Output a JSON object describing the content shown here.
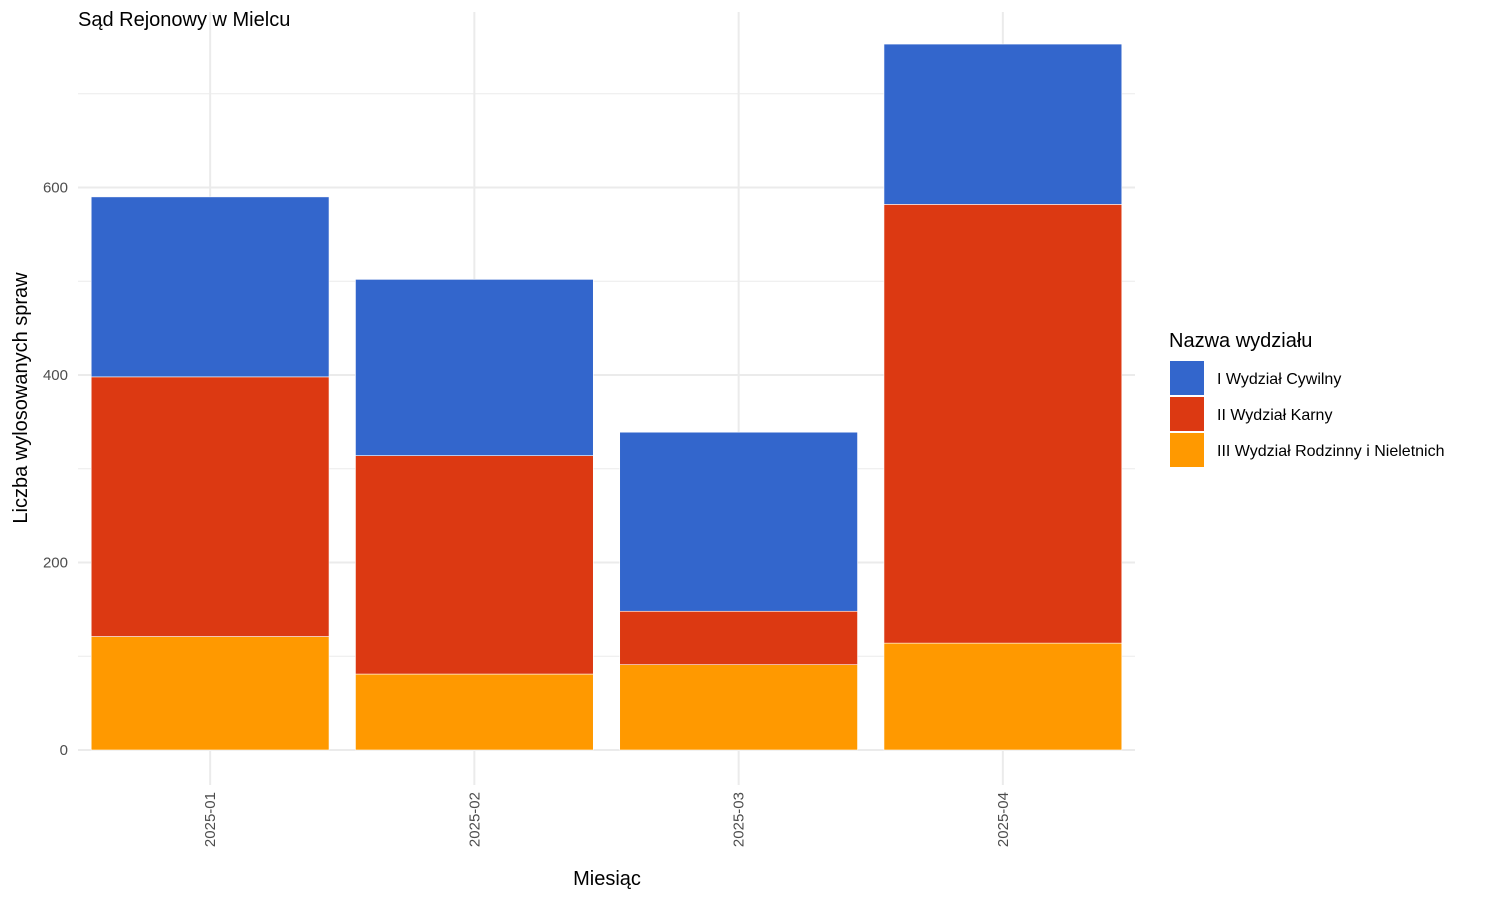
{
  "chart_data": {
    "type": "bar",
    "stacked": true,
    "title": "Sąd Rejonowy w Mielcu",
    "xlabel": "Miesiąc",
    "ylabel": "Liczba wylosowanych spraw",
    "categories": [
      "2025-01",
      "2025-02",
      "2025-03",
      "2025-04"
    ],
    "ylim": [
      0,
      790
    ],
    "yticks": [
      0,
      200,
      400,
      600
    ],
    "grid": true,
    "legend": {
      "title": "Nazwa wydziału",
      "placement": "right"
    },
    "series": [
      {
        "name": "III Wydział Rodzinny i Nieletnich",
        "color": "#FF9900",
        "values": [
          121,
          81,
          91,
          114
        ]
      },
      {
        "name": "II Wydział Karny",
        "color": "#DC3912",
        "values": [
          277,
          233,
          57,
          468
        ]
      },
      {
        "name": "I Wydział Cywilny",
        "color": "#3366CC",
        "values": [
          192,
          188,
          191,
          171
        ]
      }
    ],
    "legend_order": [
      "I Wydział Cywilny",
      "II Wydział Karny",
      "III Wydział Rodzinny i Nieletnich"
    ]
  }
}
